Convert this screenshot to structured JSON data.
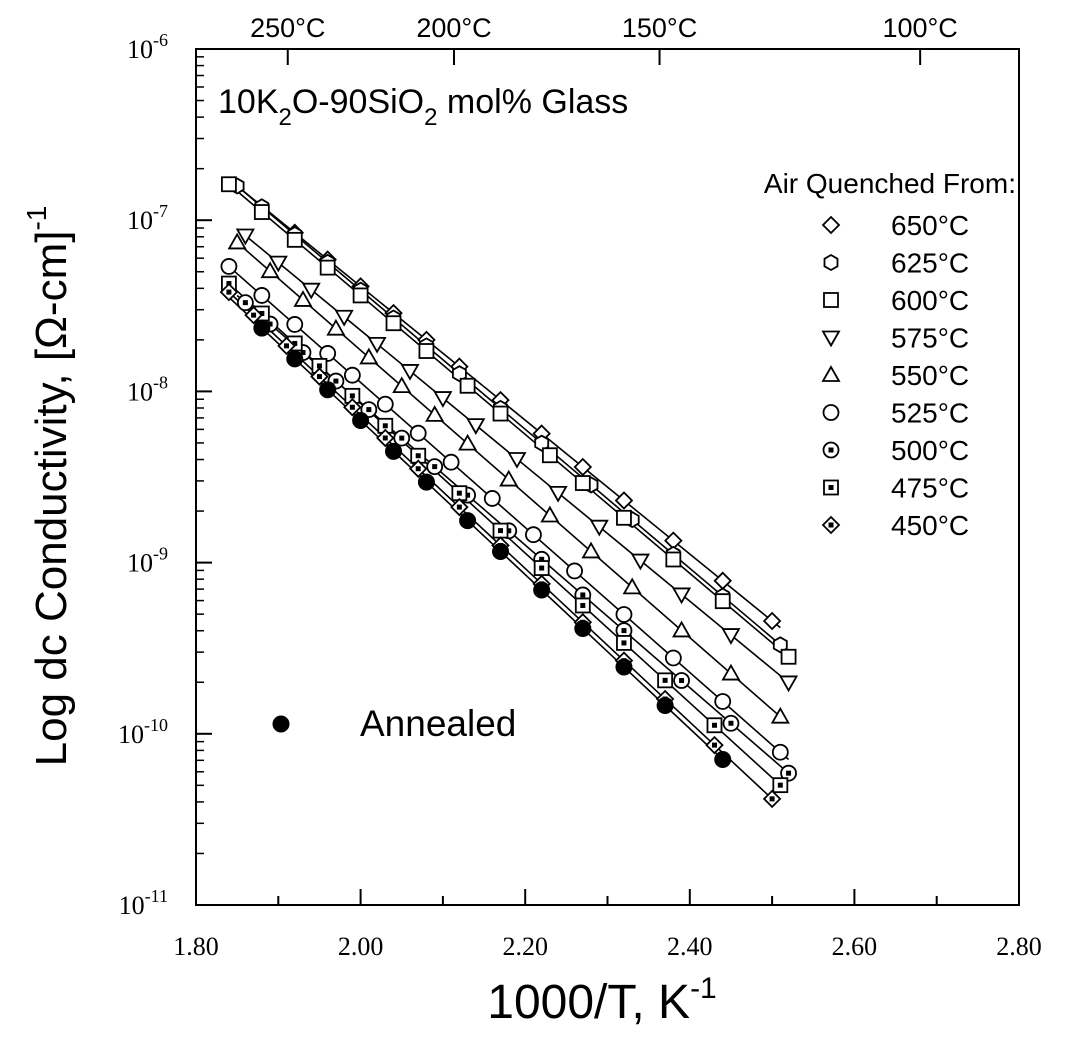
{
  "chart_data": {
    "type": "scatter",
    "title": "10K₂O-90SiO₂ mol% Glass",
    "xlabel": "1000/T, K⁻¹",
    "ylabel": "Log dc Conductivity, [Ω-cm]⁻¹",
    "xlim": [
      1.8,
      2.8
    ],
    "ylim_log10": [
      -11,
      -6
    ],
    "y_scale": "log",
    "grid": false,
    "x_ticks": [
      "1.80",
      "2.00",
      "2.20",
      "2.40",
      "2.60",
      "2.80"
    ],
    "y_ticks": [
      "10-6",
      "10-7",
      "10-8",
      "10-9",
      "10-10",
      "10-11"
    ],
    "top_axis": {
      "labels": [
        "250°C",
        "200°C",
        "150°C",
        "100°C"
      ],
      "temperatures_c": [
        250,
        200,
        150,
        100
      ]
    },
    "legend": {
      "title": "Air Quenched From:",
      "placement": "top-right"
    },
    "annealed_label": "Annealed",
    "series": [
      {
        "name": "650°C",
        "marker": "diamond",
        "logy_at_x": [
          [
            1.85,
            -6.8
          ],
          [
            2.51,
            -9.38
          ]
        ],
        "x": [
          1.92,
          1.96,
          2.0,
          2.04,
          2.08,
          2.12,
          2.17,
          2.22,
          2.27,
          2.32,
          2.38,
          2.44,
          2.5
        ]
      },
      {
        "name": "625°C",
        "marker": "hexagon",
        "logy_at_x": [
          [
            1.85,
            -6.8
          ],
          [
            2.51,
            -9.48
          ]
        ],
        "x": [
          1.85,
          1.88,
          1.92,
          1.96,
          2.0,
          2.04,
          2.08,
          2.12,
          2.17,
          2.22,
          2.28,
          2.33,
          2.38,
          2.44,
          2.51
        ]
      },
      {
        "name": "600°C",
        "marker": "square",
        "logy_at_x": [
          [
            1.84,
            -6.79
          ],
          [
            2.52,
            -9.55
          ]
        ],
        "x": [
          1.84,
          1.88,
          1.92,
          1.96,
          2.0,
          2.04,
          2.08,
          2.13,
          2.17,
          2.23,
          2.27,
          2.32,
          2.38,
          2.44,
          2.52
        ]
      },
      {
        "name": "575°C",
        "marker": "triangle-down",
        "logy_at_x": [
          [
            1.85,
            -7.05
          ],
          [
            2.52,
            -9.7
          ]
        ],
        "x": [
          1.86,
          1.9,
          1.94,
          1.98,
          2.02,
          2.06,
          2.1,
          2.14,
          2.19,
          2.24,
          2.29,
          2.34,
          2.39,
          2.45,
          2.52
        ]
      },
      {
        "name": "550°C",
        "marker": "triangle-up",
        "logy_at_x": [
          [
            1.85,
            -7.13
          ],
          [
            2.51,
            -9.9
          ]
        ],
        "x": [
          1.85,
          1.89,
          1.93,
          1.97,
          2.01,
          2.05,
          2.09,
          2.13,
          2.18,
          2.23,
          2.28,
          2.33,
          2.39,
          2.45,
          2.51
        ]
      },
      {
        "name": "525°C",
        "marker": "circle",
        "logy_at_x": [
          [
            1.84,
            -7.27
          ],
          [
            2.52,
            -10.15
          ]
        ],
        "x": [
          1.84,
          1.88,
          1.92,
          1.96,
          1.99,
          2.03,
          2.07,
          2.11,
          2.16,
          2.21,
          2.26,
          2.32,
          2.38,
          2.44,
          2.51
        ]
      },
      {
        "name": "500°C",
        "marker": "circle-dot",
        "logy_at_x": [
          [
            1.85,
            -7.44
          ],
          [
            2.52,
            -10.23
          ]
        ],
        "x": [
          1.86,
          1.89,
          1.93,
          1.97,
          2.01,
          2.05,
          2.09,
          2.13,
          2.18,
          2.22,
          2.27,
          2.32,
          2.39,
          2.45,
          2.52
        ]
      },
      {
        "name": "475°C",
        "marker": "square-dot",
        "logy_at_x": [
          [
            1.84,
            -7.37
          ],
          [
            2.51,
            -10.3
          ]
        ],
        "x": [
          1.84,
          1.88,
          1.92,
          1.95,
          1.99,
          2.03,
          2.07,
          2.12,
          2.17,
          2.22,
          2.27,
          2.32,
          2.37,
          2.43,
          2.51
        ]
      },
      {
        "name": "450°C",
        "marker": "diamond-dot",
        "logy_at_x": [
          [
            1.84,
            -7.42
          ],
          [
            2.5,
            -10.38
          ]
        ],
        "x": [
          1.84,
          1.87,
          1.91,
          1.95,
          1.99,
          2.03,
          2.07,
          2.12,
          2.17,
          2.22,
          2.27,
          2.32,
          2.37,
          2.43,
          2.5
        ]
      },
      {
        "name": "Annealed",
        "marker": "filled-circle",
        "logy_at_x": [
          [
            1.84,
            -7.45
          ],
          [
            2.44,
            -10.15
          ]
        ],
        "x": [
          1.88,
          1.92,
          1.96,
          2.0,
          2.04,
          2.08,
          2.13,
          2.17,
          2.22,
          2.27,
          2.32,
          2.37,
          2.44
        ]
      }
    ]
  }
}
